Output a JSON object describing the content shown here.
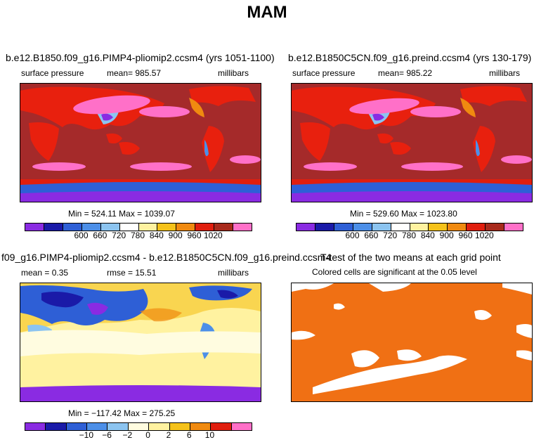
{
  "title": "MAM",
  "panels": [
    {
      "title": "b.e12.B1850.f09_g16.PIMP4-pliomip2.ccsm4 (yrs 1051-1100)",
      "left_label": "surface pressure",
      "center_label": "mean=  985.57",
      "units": "millibars",
      "stats": "Min = 524.11 Max = 1039.07",
      "colorbar": {
        "colors": [
          "#8a2be2",
          "#1a1aa8",
          "#2e5fd6",
          "#4c8fe8",
          "#8cc4f0",
          "#ffffff",
          "#fff2a0",
          "#f5c21a",
          "#f08a10",
          "#e01e0e",
          "#a82a1c",
          "#ff70c8"
        ],
        "labels": [
          "600",
          "660",
          "720",
          "780",
          "840",
          "900",
          "960",
          "1020"
        ]
      }
    },
    {
      "title": "b.e12.B1850C5CN.f09_g16.preind.ccsm4 (yrs 130-179)",
      "left_label": "surface pressure",
      "center_label": "mean=  985.22",
      "units": "millibars",
      "stats": "Min = 529.60 Max = 1023.80",
      "colorbar": {
        "colors": [
          "#8a2be2",
          "#1a1aa8",
          "#2e5fd6",
          "#4c8fe8",
          "#8cc4f0",
          "#ffffff",
          "#fff2a0",
          "#f5c21a",
          "#f08a10",
          "#e01e0e",
          "#a82a1c",
          "#ff70c8"
        ],
        "labels": [
          "600",
          "660",
          "720",
          "780",
          "840",
          "900",
          "960",
          "1020"
        ]
      }
    },
    {
      "title": "f09_g16.PIMP4-pliomip2.ccsm4 - b.e12.B1850C5CN.f09_g16.preind.ccsm4",
      "left_label": "mean =    0.35",
      "center_label": "rmse =   15.51",
      "units": "millibars",
      "stats": "Min = −117.42 Max = 275.25",
      "colorbar": {
        "colors": [
          "#8a2be2",
          "#1a1aa8",
          "#2e5fd6",
          "#4c8fe8",
          "#8cc4f0",
          "#fffce0",
          "#fff2a0",
          "#f5c21a",
          "#f08a10",
          "#e01e0e",
          "#ff70c8"
        ],
        "labels": [
          "−10",
          "−6",
          "−2",
          "0",
          "2",
          "6",
          "10"
        ]
      }
    },
    {
      "title": "T-test of the two means at each grid point",
      "subtitle": "Colored cells are significant at the 0.05 level"
    }
  ],
  "colors": {
    "ocean_sp": "#a52a2a",
    "land_sp": "#e8200e",
    "high_sp": "#ff70c8",
    "diff_bg": "#fff2a0",
    "ttest_fill": "#f07014"
  }
}
